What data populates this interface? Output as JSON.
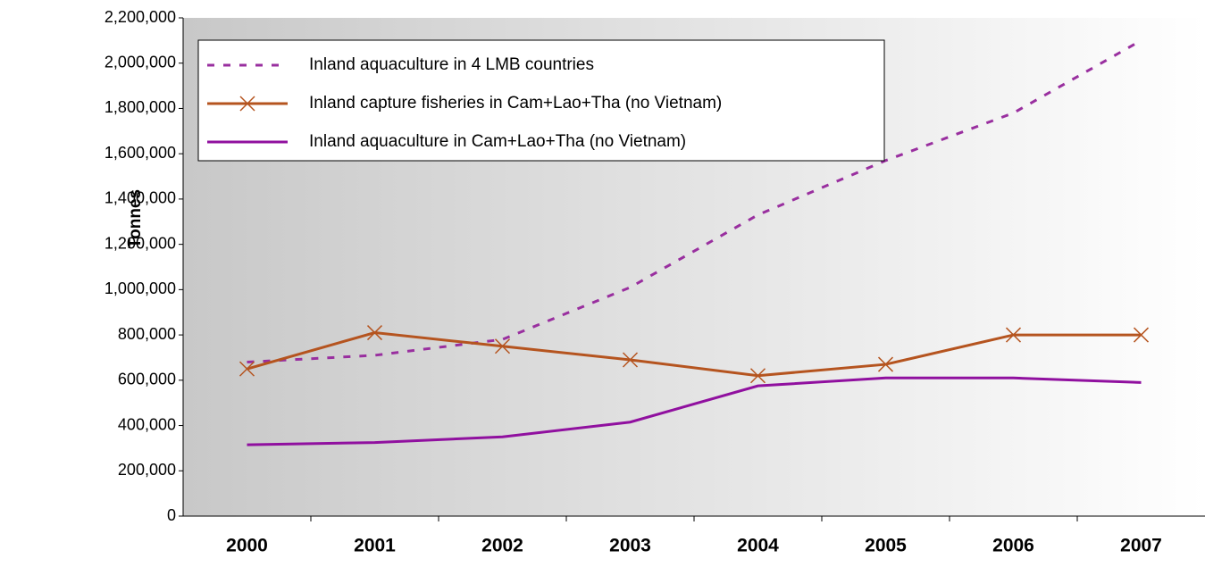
{
  "chart_data": {
    "type": "line",
    "y_label": "Tonnes",
    "categories": [
      "2000",
      "2001",
      "2002",
      "2003",
      "2004",
      "2005",
      "2006",
      "2007"
    ],
    "series": [
      {
        "name": "Inland aquaculture in 4 LMB countries",
        "color": "#992f9f",
        "style": "dotted",
        "values": [
          680000,
          710000,
          780000,
          1010000,
          1330000,
          1570000,
          1780000,
          2100000
        ]
      },
      {
        "name": "Inland capture fisheries in Cam+Lao+Tha (no Vietnam)",
        "color": "#b5541f",
        "style": "solid",
        "marker": "x",
        "values": [
          650000,
          810000,
          750000,
          690000,
          620000,
          670000,
          800000,
          800000
        ]
      },
      {
        "name": "Inland aquaculture in Cam+Lao+Tha (no Vietnam)",
        "color": "#90109f",
        "style": "solid",
        "values": [
          315000,
          325000,
          350000,
          415000,
          575000,
          610000,
          610000,
          590000
        ]
      }
    ],
    "ylim": [
      0,
      2200000
    ],
    "yticks": [
      0,
      {
        "value": 200000,
        "label": "200,000"
      },
      {
        "value": 400000,
        "label": "400,000"
      },
      {
        "value": 600000,
        "label": "600,000"
      },
      {
        "value": 800000,
        "label": "800,000"
      },
      {
        "value": 1000000,
        "label": "1,000,000"
      },
      {
        "value": 1200000,
        "label": "1,200,000"
      },
      {
        "value": 1400000,
        "label": "1,400,000"
      },
      {
        "value": 1600000,
        "label": "1,600,000"
      },
      {
        "value": 1800000,
        "label": "1,800,000"
      },
      {
        "value": 2000000,
        "label": "2,000,000"
      },
      {
        "value": 2200000,
        "label": "2,200,000"
      }
    ],
    "legend": "upper left"
  }
}
